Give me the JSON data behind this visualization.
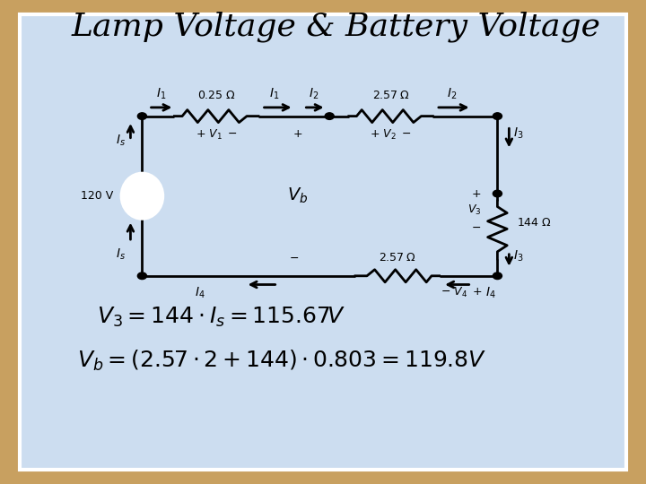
{
  "title": "Lamp Voltage & Battery Voltage",
  "bg_outer": "#c8a060",
  "bg_inner": "#ccddf0",
  "title_color": "#000000",
  "circuit_color": "#000000",
  "formula1": "$V_3 = 144 \\cdot I_s = 115.67V$",
  "formula2": "$V_b = (2.57 \\cdot 2 + 144) \\cdot 0.803 = 119.8V$",
  "title_fontsize": 26,
  "formula_fontsize": 18
}
